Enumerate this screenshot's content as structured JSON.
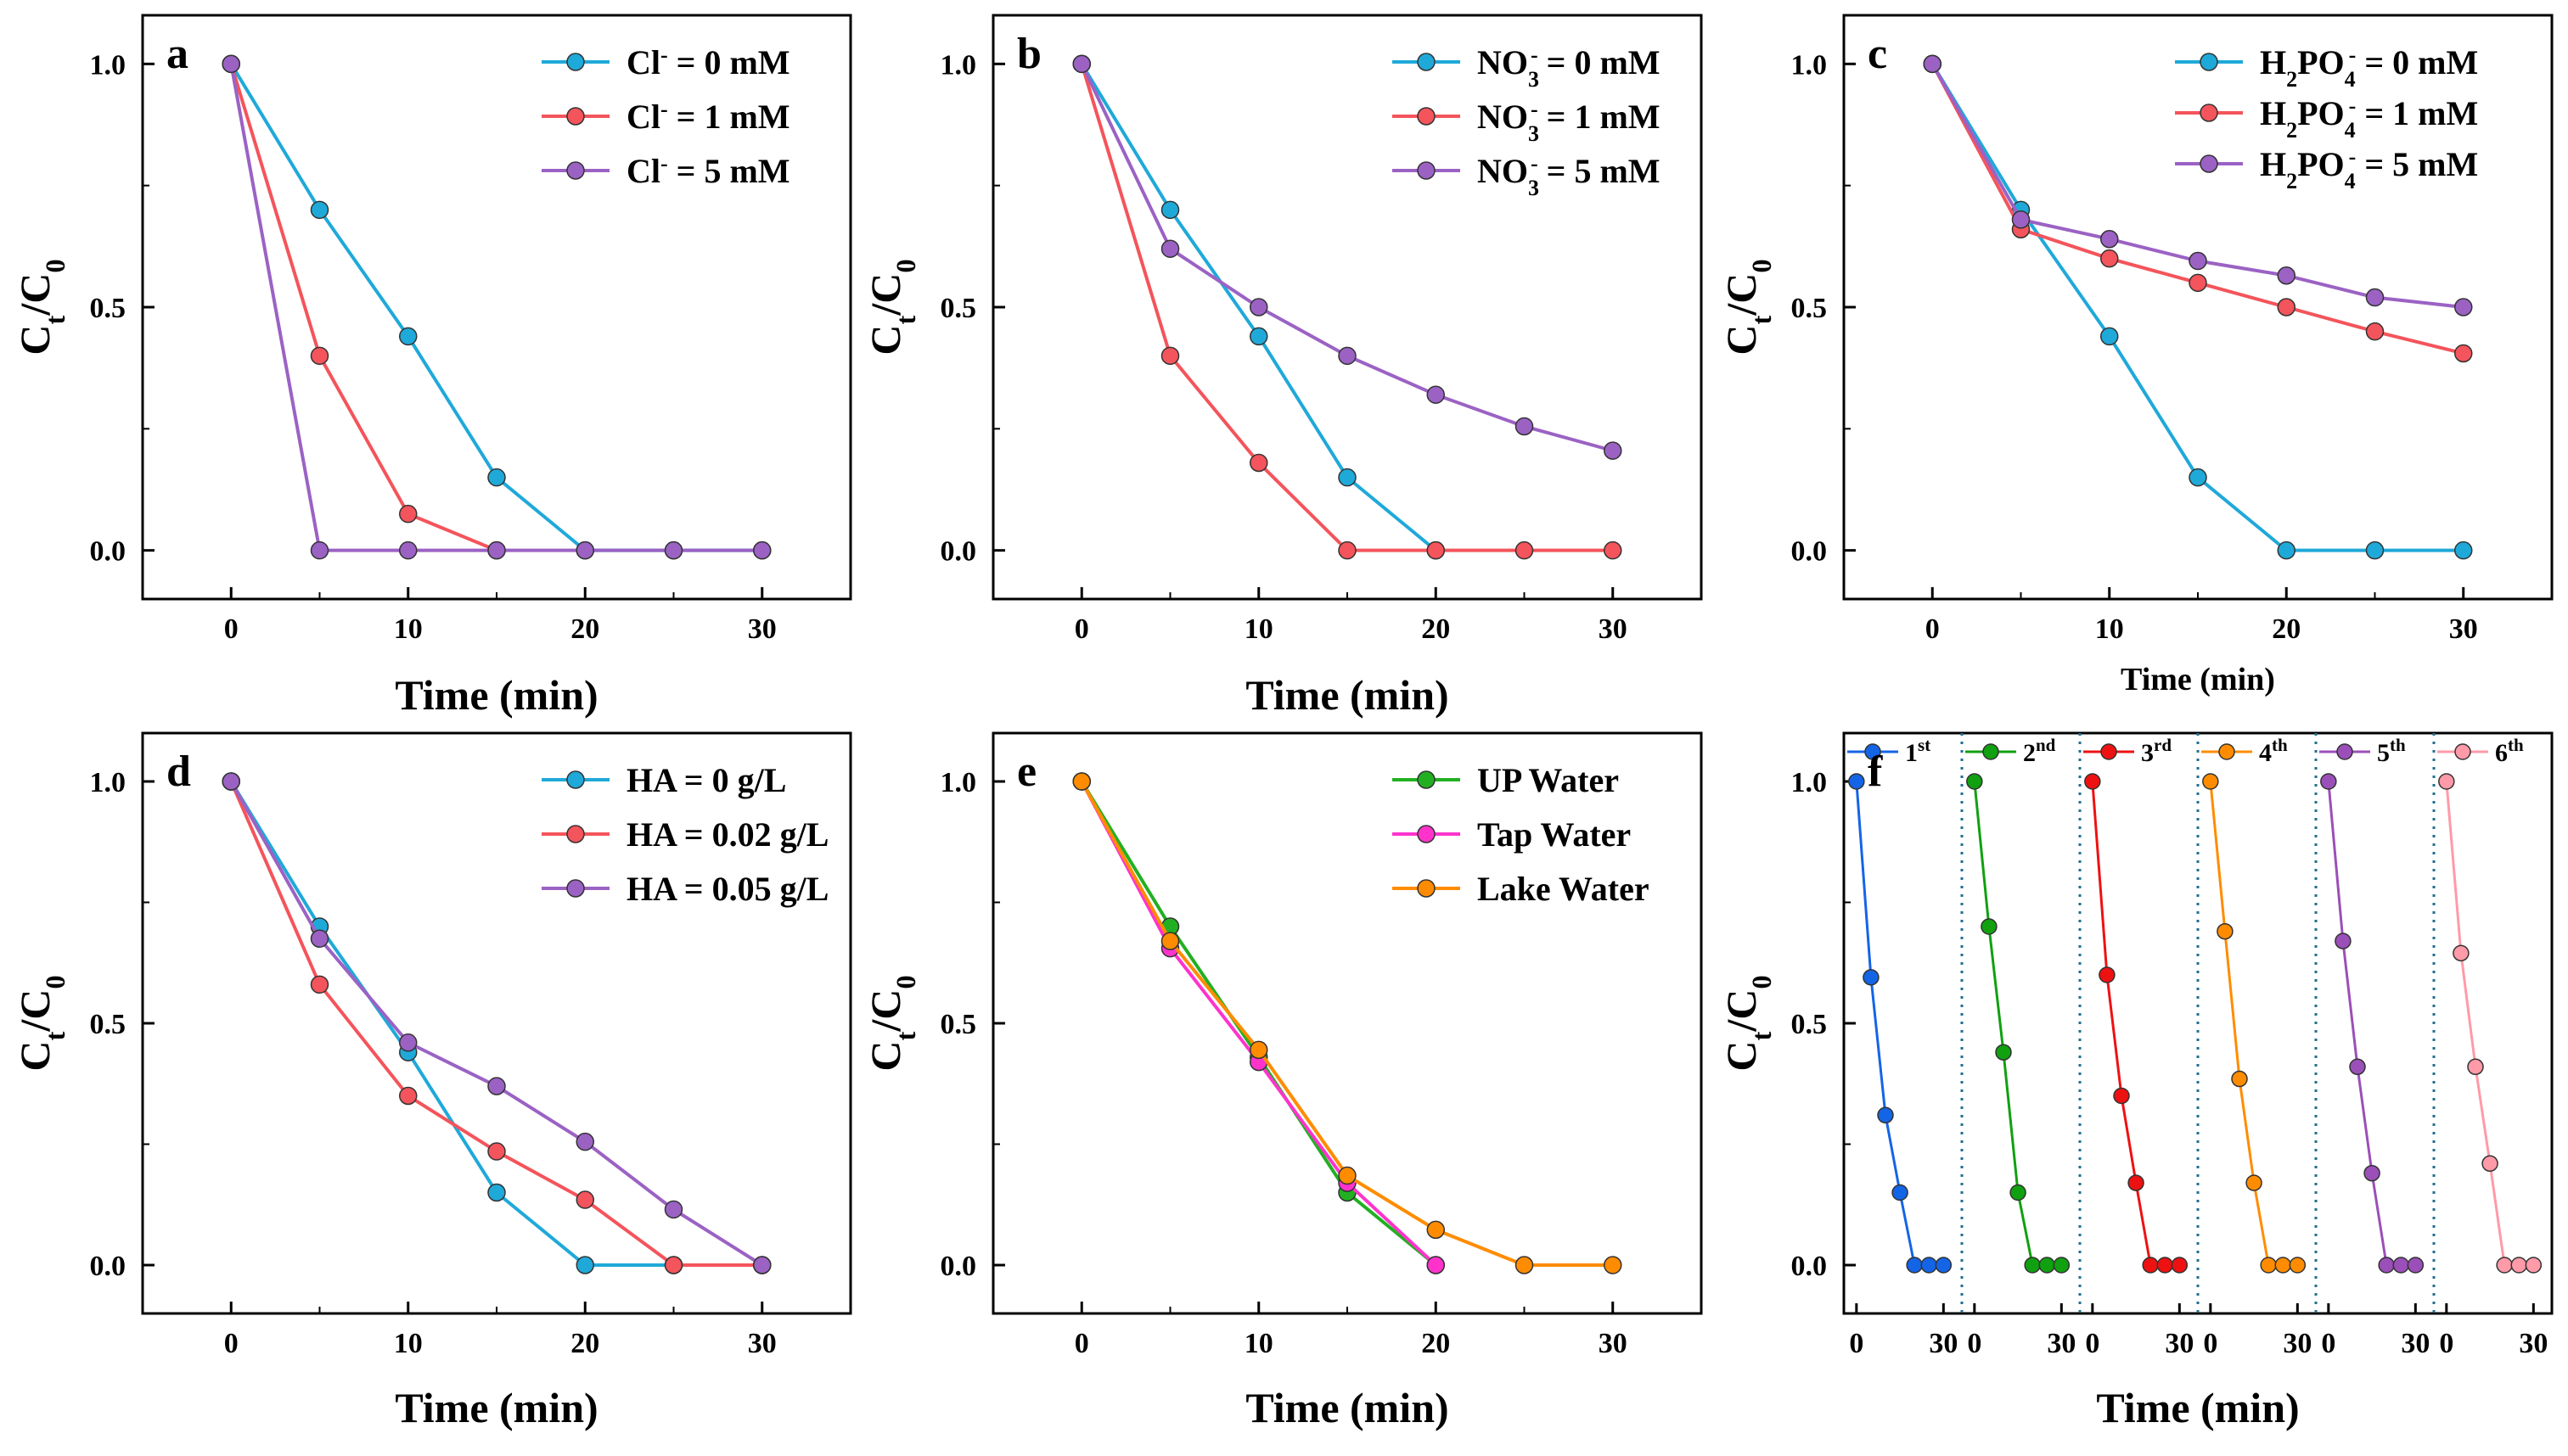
{
  "chart_data": [
    {
      "panel": "a",
      "type": "line",
      "xlabel": "Time (min)",
      "ylabel": "Ct/C0",
      "xlim": [
        -5,
        35
      ],
      "ylim": [
        -0.1,
        1.1
      ],
      "xticks": [
        "0",
        "10",
        "20",
        "30"
      ],
      "yticks": [
        "0.0",
        "0.5",
        "1.0"
      ],
      "legend_position": "top-right",
      "series": [
        {
          "name": "Cl⁻ = 0 mM",
          "label_parts": [
            "Cl",
            "-",
            "",
            " = 0 mM"
          ],
          "color": "#1fa9d9",
          "x": [
            0,
            5,
            10,
            15,
            20,
            25,
            30
          ],
          "y": [
            1.0,
            0.7,
            0.44,
            0.15,
            0.0,
            0.0,
            0.0
          ]
        },
        {
          "name": "Cl⁻ = 1 mM",
          "label_parts": [
            "Cl",
            "-",
            "",
            " = 1 mM"
          ],
          "color": "#f4545b",
          "x": [
            0,
            5,
            10,
            15
          ],
          "y": [
            1.0,
            0.4,
            0.075,
            0.0
          ]
        },
        {
          "name": "Cl⁻ = 5 mM",
          "label_parts": [
            "Cl",
            "-",
            "",
            " = 5 mM"
          ],
          "color": "#9b62c4",
          "x": [
            0,
            5,
            10,
            15,
            20,
            25,
            30
          ],
          "y": [
            1.0,
            0.0,
            0.0,
            0.0,
            0.0,
            0.0,
            0.0
          ]
        }
      ]
    },
    {
      "panel": "b",
      "type": "line",
      "xlabel": "Time (min)",
      "ylabel": "Ct/C0",
      "xlim": [
        -5,
        35
      ],
      "ylim": [
        -0.1,
        1.1
      ],
      "xticks": [
        "0",
        "10",
        "20",
        "30"
      ],
      "yticks": [
        "0.0",
        "0.5",
        "1.0"
      ],
      "legend_position": "top-right",
      "series": [
        {
          "name": "NO₃⁻ = 0 mM",
          "label_parts": [
            "NO",
            "-",
            "3",
            " = 0 mM"
          ],
          "color": "#1fa9d9",
          "x": [
            0,
            5,
            10,
            15,
            20
          ],
          "y": [
            1.0,
            0.7,
            0.44,
            0.15,
            0.0
          ]
        },
        {
          "name": "NO₃⁻ = 1 mM",
          "label_parts": [
            "NO",
            "-",
            "3",
            " = 1 mM"
          ],
          "color": "#f4545b",
          "x": [
            0,
            5,
            10,
            15,
            20,
            25,
            30
          ],
          "y": [
            1.0,
            0.4,
            0.18,
            0.0,
            0.0,
            0.0,
            0.0
          ]
        },
        {
          "name": "NO₃⁻ = 5 mM",
          "label_parts": [
            "NO",
            "-",
            "3",
            " = 5 mM"
          ],
          "color": "#9b62c4",
          "x": [
            0,
            5,
            10,
            15,
            20,
            25,
            30
          ],
          "y": [
            1.0,
            0.62,
            0.5,
            0.4,
            0.32,
            0.255,
            0.205
          ]
        }
      ]
    },
    {
      "panel": "c",
      "type": "line",
      "xlabel": "Time (min)",
      "ylabel": "Ct/C0",
      "xlim": [
        -5,
        35
      ],
      "ylim": [
        -0.1,
        1.1
      ],
      "xticks": [
        "0",
        "10",
        "20",
        "30"
      ],
      "yticks": [
        "0.0",
        "0.5",
        "1.0"
      ],
      "legend_position": "top-right",
      "series": [
        {
          "name": "H₂PO₄⁻ = 0 mM",
          "label_parts": [
            "H",
            "2",
            "PO",
            "4",
            "-",
            " = 0 mM"
          ],
          "color": "#1fa9d9",
          "x": [
            0,
            5,
            10,
            15,
            20,
            25,
            30
          ],
          "y": [
            1.0,
            0.7,
            0.44,
            0.15,
            0.0,
            0.0,
            0.0
          ]
        },
        {
          "name": "H₂PO₄⁻ = 1 mM",
          "label_parts": [
            "H",
            "2",
            "PO",
            "4",
            "-",
            " = 1 mM"
          ],
          "color": "#f4545b",
          "x": [
            0,
            5,
            10,
            15,
            20,
            25,
            30
          ],
          "y": [
            1.0,
            0.66,
            0.6,
            0.55,
            0.5,
            0.45,
            0.405
          ]
        },
        {
          "name": "H₂PO₄⁻ = 5 mM",
          "label_parts": [
            "H",
            "2",
            "PO",
            "4",
            "-",
            " = 5 mM"
          ],
          "color": "#9b62c4",
          "x": [
            0,
            5,
            10,
            15,
            20,
            25,
            30
          ],
          "y": [
            1.0,
            0.68,
            0.64,
            0.595,
            0.565,
            0.52,
            0.5
          ]
        }
      ]
    },
    {
      "panel": "d",
      "type": "line",
      "xlabel": "Time (min)",
      "ylabel": "Ct/C0",
      "xlim": [
        -5,
        35
      ],
      "ylim": [
        -0.1,
        1.1
      ],
      "xticks": [
        "0",
        "10",
        "20",
        "30"
      ],
      "yticks": [
        "0.0",
        "0.5",
        "1.0"
      ],
      "legend_position": "top-right",
      "series": [
        {
          "name": "HA = 0 g/L",
          "color": "#1fa9d9",
          "x": [
            0,
            5,
            10,
            15,
            20,
            25,
            30
          ],
          "y": [
            1.0,
            0.7,
            0.44,
            0.15,
            0.0,
            0.0,
            0.0
          ]
        },
        {
          "name": "HA = 0.02 g/L",
          "color": "#f4545b",
          "x": [
            0,
            5,
            10,
            15,
            20,
            25,
            30
          ],
          "y": [
            1.0,
            0.58,
            0.35,
            0.235,
            0.135,
            0.0,
            0.0
          ]
        },
        {
          "name": "HA = 0.05 g/L",
          "color": "#9b62c4",
          "x": [
            0,
            5,
            10,
            15,
            20,
            25,
            30
          ],
          "y": [
            1.0,
            0.675,
            0.46,
            0.37,
            0.255,
            0.115,
            0.0
          ]
        }
      ]
    },
    {
      "panel": "e",
      "type": "line",
      "xlabel": "Time (min)",
      "ylabel": "Ct/C0",
      "xlim": [
        -5,
        35
      ],
      "ylim": [
        -0.1,
        1.1
      ],
      "xticks": [
        "0",
        "10",
        "20",
        "30"
      ],
      "yticks": [
        "0.0",
        "0.5",
        "1.0"
      ],
      "legend_position": "top-right",
      "series": [
        {
          "name": "UP Water",
          "color": "#22b022",
          "x": [
            0,
            5,
            10,
            15,
            20
          ],
          "y": [
            1.0,
            0.7,
            0.43,
            0.15,
            0.0
          ]
        },
        {
          "name": "Tap Water",
          "color": "#ff33cc",
          "x": [
            0,
            5,
            10,
            15,
            20
          ],
          "y": [
            1.0,
            0.655,
            0.42,
            0.17,
            0.0
          ]
        },
        {
          "name": "Lake Water",
          "color": "#ff8c00",
          "x": [
            0,
            5,
            10,
            15,
            20,
            25,
            30
          ],
          "y": [
            1.0,
            0.67,
            0.445,
            0.185,
            0.073,
            0.0,
            0.0
          ]
        }
      ]
    },
    {
      "panel": "f",
      "type": "line",
      "xlabel": "Time (min)",
      "ylabel": "Ct/C0",
      "xlim": [
        -2,
        34
      ],
      "ylim": [
        -0.1,
        1.1
      ],
      "xticks": [
        "0",
        "30"
      ],
      "yticks": [
        "0.0",
        "0.5",
        "1.0"
      ],
      "x": [
        0,
        5,
        10,
        15,
        20,
        25,
        30
      ],
      "series": [
        {
          "name": "1st",
          "base": "1",
          "sup": "st",
          "color": "#1464e6",
          "y": [
            1.0,
            0.595,
            0.31,
            0.15,
            0.0,
            0.0,
            0.0
          ]
        },
        {
          "name": "2nd",
          "base": "2",
          "sup": "nd",
          "color": "#10a010",
          "y": [
            1.0,
            0.7,
            0.44,
            0.15,
            0.0,
            0.0,
            0.0
          ]
        },
        {
          "name": "3rd",
          "base": "3",
          "sup": "rd",
          "color": "#ee1111",
          "y": [
            1.0,
            0.6,
            0.35,
            0.17,
            0.0,
            0.0,
            0.0
          ]
        },
        {
          "name": "4th",
          "base": "4",
          "sup": "th",
          "color": "#ff8c00",
          "y": [
            1.0,
            0.69,
            0.385,
            0.17,
            0.0,
            0.0,
            0.0
          ]
        },
        {
          "name": "5th",
          "base": "5",
          "sup": "th",
          "color": "#9b4fb8",
          "y": [
            1.0,
            0.67,
            0.41,
            0.19,
            0.0,
            0.0,
            0.0
          ]
        },
        {
          "name": "6th",
          "base": "6",
          "sup": "th",
          "color": "#ff9aa8",
          "y": [
            1.0,
            0.645,
            0.41,
            0.21,
            0.0,
            0.0,
            0.0
          ]
        }
      ]
    }
  ]
}
